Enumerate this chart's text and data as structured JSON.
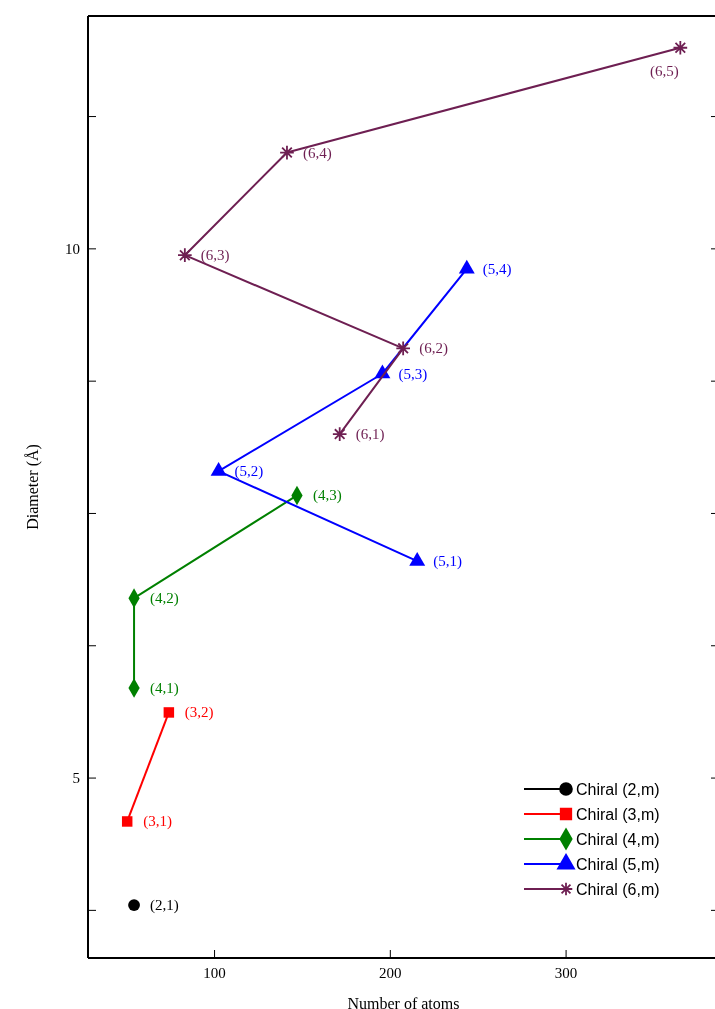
{
  "chart_data": {
    "type": "line",
    "xlabel": "Number of atoms",
    "ylabel": "Diameter (Å)",
    "xlim": [
      28,
      387
    ],
    "xticks": [
      100,
      200,
      300
    ],
    "ylim": [
      3.3,
      12.2
    ],
    "yticks": [
      {
        "value": 3.75,
        "label": null
      },
      5,
      {
        "value": 6.25,
        "label": null
      },
      {
        "value": 7.5,
        "label": null
      },
      {
        "value": 8.75,
        "label": null
      },
      10,
      {
        "value": 11.25,
        "label": null
      }
    ],
    "grid": false,
    "legend": "bottom right",
    "series": [
      {
        "name": "Chiral (2,m)",
        "color": "#000000",
        "marker": "circle",
        "x": [
          54.2
        ],
        "values": [
          3.8
        ]
      },
      {
        "name": "Chiral (3,m)",
        "color": "#ff0000",
        "marker": "square",
        "x": [
          50.3,
          74
        ],
        "values": [
          4.59,
          5.62
        ]
      },
      {
        "name": "Chiral (4,m)",
        "color": "#008000",
        "marker": "diamond",
        "x": [
          54.2,
          54.2,
          146.9
        ],
        "values": [
          5.85,
          6.7,
          7.67
        ]
      },
      {
        "name": "Chiral (5,m)",
        "color": "#0000ff",
        "marker": "triangle",
        "x": [
          215.3,
          102.3,
          195.5,
          243.5
        ],
        "values": [
          7.05,
          7.9,
          8.82,
          9.81
        ]
      },
      {
        "name": "Chiral (6,m)",
        "color": "#6e1f52",
        "marker": "cross",
        "x": [
          171.2,
          207.3,
          83.1,
          141.2,
          365
        ],
        "values": [
          8.25,
          9.06,
          9.94,
          10.91,
          11.9
        ]
      }
    ],
    "annotations": [
      {
        "text": "(2,1)",
        "x": 54.2,
        "y": 3.8
      },
      {
        "text": "(3,1)",
        "x": 50.3,
        "y": 4.59
      },
      {
        "text": "(3,2)",
        "x": 74,
        "y": 5.62
      },
      {
        "text": "(4,1)",
        "x": 54.2,
        "y": 5.85
      },
      {
        "text": "(4,2)",
        "x": 54.2,
        "y": 6.7
      },
      {
        "text": "(4,3)",
        "x": 146.9,
        "y": 7.67
      },
      {
        "text": "(5,1)",
        "x": 215.3,
        "y": 7.05
      },
      {
        "text": "(5,2)",
        "x": 102.3,
        "y": 7.9
      },
      {
        "text": "(5,3)",
        "x": 195.5,
        "y": 8.82
      },
      {
        "text": "(5,4)",
        "x": 243.5,
        "y": 9.81
      },
      {
        "text": "(6,1)",
        "x": 171.2,
        "y": 8.25
      },
      {
        "text": "(6,2)",
        "x": 207.3,
        "y": 9.06
      },
      {
        "text": "(6,3)",
        "x": 83.1,
        "y": 9.94
      },
      {
        "text": "(6,4)",
        "x": 141.2,
        "y": 10.91
      },
      {
        "text": "(6,5)",
        "x": 365,
        "y": 11.9
      }
    ]
  }
}
